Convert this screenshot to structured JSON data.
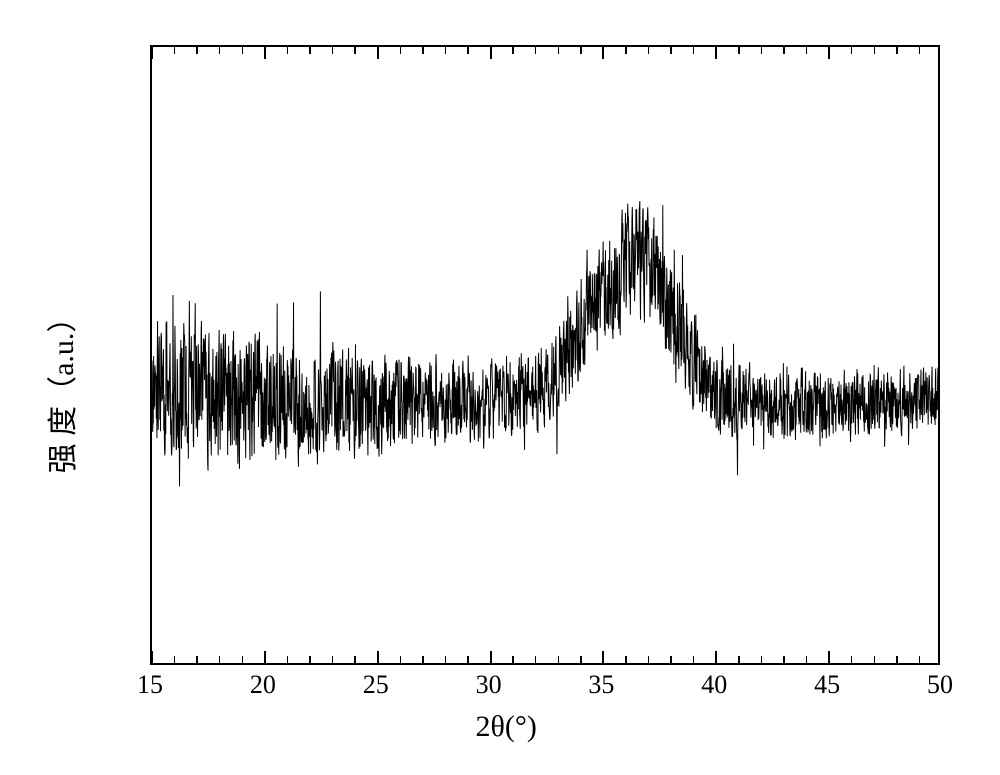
{
  "chart": {
    "type": "line",
    "xlabel": "2θ(°)",
    "ylabel": "强 度（a.u.）",
    "xlim": [
      15,
      50
    ],
    "ylim": [
      0,
      1
    ],
    "xtick_major": [
      15,
      20,
      25,
      30,
      35,
      40,
      45,
      50
    ],
    "xtick_minor_step": 1,
    "background_color": "#ffffff",
    "frame_color": "#000000",
    "line_color": "#000000",
    "line_width": 1.0,
    "label_fontsize": 30,
    "tick_fontsize": 26,
    "baseline_y": 0.42,
    "noise_amplitude_points": [
      [
        15,
        0.135
      ],
      [
        22,
        0.115
      ],
      [
        28,
        0.08
      ],
      [
        32,
        0.075
      ],
      [
        34,
        0.095
      ],
      [
        36,
        0.115
      ],
      [
        38,
        0.105
      ],
      [
        40,
        0.08
      ],
      [
        45,
        0.065
      ],
      [
        50,
        0.06
      ]
    ],
    "envelope_center_points": [
      [
        15,
        0.455
      ],
      [
        18,
        0.432
      ],
      [
        22,
        0.423
      ],
      [
        26,
        0.42
      ],
      [
        30,
        0.422
      ],
      [
        32,
        0.44
      ],
      [
        33,
        0.475
      ],
      [
        34,
        0.535
      ],
      [
        35,
        0.595
      ],
      [
        36,
        0.64
      ],
      [
        36.5,
        0.655
      ],
      [
        37,
        0.65
      ],
      [
        37.5,
        0.625
      ],
      [
        38,
        0.58
      ],
      [
        39,
        0.5
      ],
      [
        40,
        0.44
      ],
      [
        42,
        0.418
      ],
      [
        45,
        0.42
      ],
      [
        50,
        0.428
      ]
    ],
    "n_samples": 2400,
    "rng_seed": 17
  }
}
